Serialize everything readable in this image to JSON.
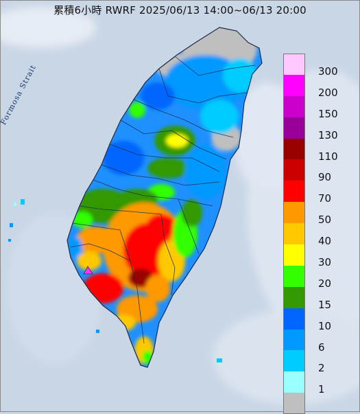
{
  "title": "累積6小時 RWRF 2025/06/13 14:00~06/13 20:00",
  "strait_label": "Formosa Strait",
  "colors": {
    "sea": "#c9d6e6",
    "cloud": "#e8eef6",
    "land_base": "#1e90ff",
    "boundary": "#1a2a4a"
  },
  "legend": {
    "items": [
      {
        "label": "300",
        "color": "#ffc8ff"
      },
      {
        "label": "200",
        "color": "#ff00ff"
      },
      {
        "label": "150",
        "color": "#cc00cc"
      },
      {
        "label": "130",
        "color": "#990099"
      },
      {
        "label": "110",
        "color": "#990000"
      },
      {
        "label": "90",
        "color": "#cc0000"
      },
      {
        "label": "70",
        "color": "#ff0000"
      },
      {
        "label": "50",
        "color": "#ff9900"
      },
      {
        "label": "40",
        "color": "#ffc800"
      },
      {
        "label": "30",
        "color": "#ffff00"
      },
      {
        "label": "20",
        "color": "#33ff00"
      },
      {
        "label": "15",
        "color": "#339900"
      },
      {
        "label": "10",
        "color": "#0066ff"
      },
      {
        "label": "6",
        "color": "#0099ff"
      },
      {
        "label": "2",
        "color": "#00ccff"
      },
      {
        "label": "1",
        "color": "#99ffff"
      },
      {
        "label": "",
        "color": "#bfbfbf"
      }
    ]
  }
}
